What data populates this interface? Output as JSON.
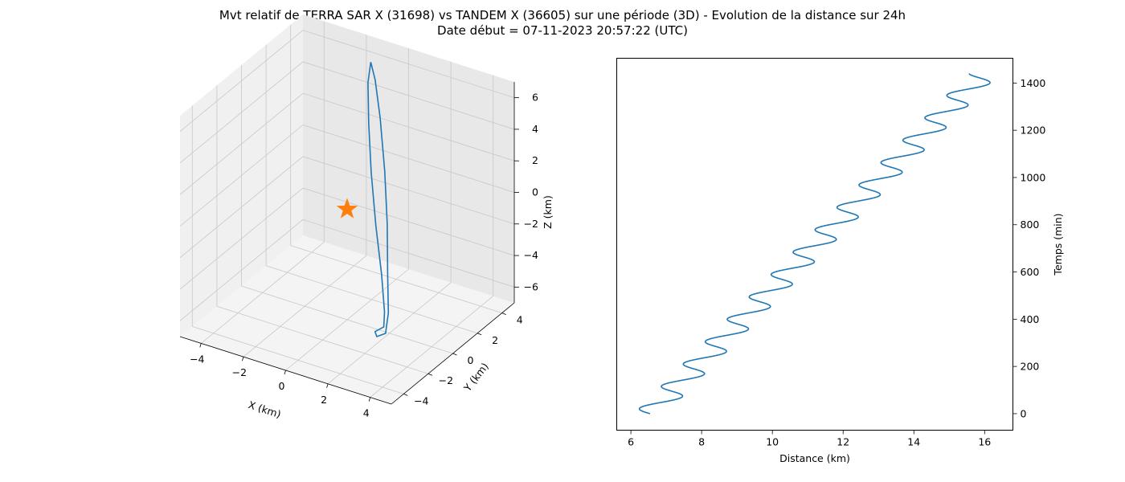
{
  "figure": {
    "title_line1": "Mvt relatif de TERRA SAR X (31698) vs TANDEM X (36605) sur une période (3D) - Evolution de la distance sur 24h",
    "title_line2": "Date début = 07-11-2023 20:57:22 (UTC)"
  },
  "colors": {
    "series": "#1f77b4",
    "marker": "#ff7f0e",
    "pane_back": "#e8e8e8",
    "pane_side": "#f0f0f0",
    "pane_floor": "#f4f4f4",
    "grid": "#c8c8c8"
  },
  "chart_data": [
    {
      "type": "line",
      "projection": "3d",
      "xlabel": "X (km)",
      "ylabel": "Y (km)",
      "zlabel": "Z (km)",
      "xlim": [
        -5,
        5
      ],
      "ylim": [
        -5,
        5
      ],
      "zlim": [
        -7,
        7
      ],
      "xticks": [
        "−4",
        "−2",
        "0",
        "2",
        "4"
      ],
      "yticks": [
        "−4",
        "−2",
        "0",
        "2",
        "4"
      ],
      "zticks": [
        "−6",
        "−4",
        "−2",
        "0",
        "2",
        "4",
        "6"
      ],
      "grid": true,
      "series": [
        {
          "points": [
            [
              -1.5,
              4.5,
              5.8
            ],
            [
              -1.0,
              4.0,
              5.2
            ],
            [
              -0.3,
              3.2,
              3.6
            ],
            [
              0.5,
              2.2,
              1.2
            ],
            [
              1.2,
              1.2,
              -1.2
            ],
            [
              1.8,
              0.2,
              -3.4
            ],
            [
              2.3,
              -0.6,
              -5.2
            ],
            [
              2.4,
              -1.0,
              -6.2
            ],
            [
              2.1,
              -1.2,
              -6.4
            ],
            [
              1.9,
              -1.0,
              -6.3
            ],
            [
              2.2,
              -0.8,
              -6.0
            ],
            [
              2.0,
              -0.4,
              -5.4
            ],
            [
              1.4,
              0.4,
              -3.8
            ],
            [
              0.6,
              1.3,
              -1.6
            ],
            [
              -0.2,
              2.3,
              0.8
            ],
            [
              -0.9,
              3.3,
              3.0
            ],
            [
              -1.4,
              4.1,
              4.8
            ],
            [
              -1.5,
              4.5,
              5.8
            ]
          ]
        }
      ],
      "markers": [
        {
          "shape": "star",
          "point": [
            0,
            0,
            0
          ]
        }
      ]
    },
    {
      "type": "line",
      "xlabel": "Distance (km)",
      "ylabel": "Temps (min)",
      "xlim": [
        5.6,
        16.8
      ],
      "ylim": [
        -70,
        1505
      ],
      "xticks": [
        6,
        8,
        10,
        12,
        14,
        16
      ],
      "yticks": [
        0,
        200,
        400,
        600,
        800,
        1000,
        1200,
        1400
      ],
      "y_axis_side": "right",
      "grid": false,
      "series": [
        {
          "model": {
            "t_start": 0,
            "t_end": 1440,
            "period_min": 94.8,
            "phase_deg": 180,
            "base_distance": 6.54,
            "slope_km_per_min": 0.00655,
            "amplitude_km": 0.445
          }
        }
      ]
    }
  ]
}
